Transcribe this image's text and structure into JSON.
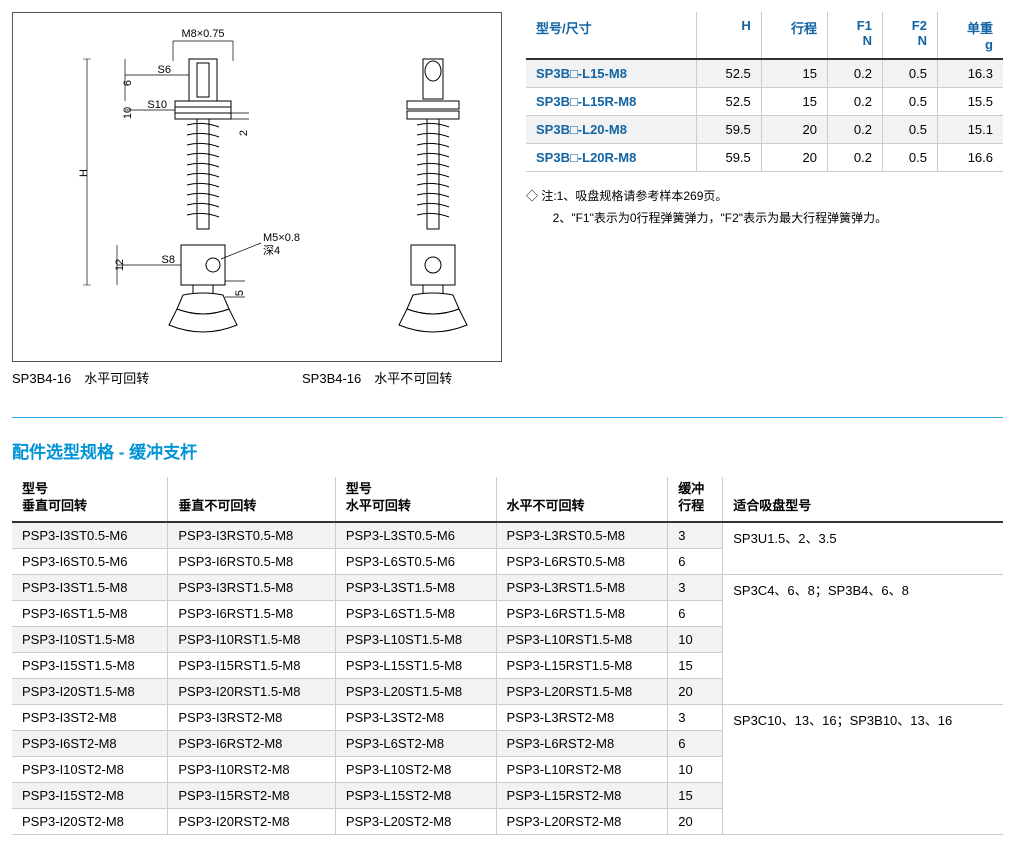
{
  "diagram": {
    "thread_top": "M8×0.75",
    "thread_side": "M5×0.8",
    "depth": "深4",
    "dim_s6": "S6",
    "dim_s10": "S10",
    "dim_s8": "S8",
    "dim_6": "6",
    "dim_10": "10",
    "dim_2": "2",
    "dim_12": "12",
    "dim_5": "5",
    "dim_H": "H",
    "caption_left": "SP3B4-16　水平可回转",
    "caption_right": "SP3B4-16　水平不可回转",
    "svg_stroke": "#000000",
    "svg_fill": "#ffffff"
  },
  "spec_table": {
    "headers": {
      "model": "型号/尺寸",
      "h": "H",
      "stroke": "行程",
      "f1_a": "F1",
      "f1_b": "N",
      "f2_a": "F2",
      "f2_b": "N",
      "wt_a": "单重",
      "wt_b": "g"
    },
    "rows": [
      {
        "model": "SP3B□-L15-M8",
        "h": "52.5",
        "stroke": "15",
        "f1": "0.2",
        "f2": "0.5",
        "wt": "16.3",
        "alt": true
      },
      {
        "model": "SP3B□-L15R-M8",
        "h": "52.5",
        "stroke": "15",
        "f1": "0.2",
        "f2": "0.5",
        "wt": "15.5",
        "alt": false
      },
      {
        "model": "SP3B□-L20-M8",
        "h": "59.5",
        "stroke": "20",
        "f1": "0.2",
        "f2": "0.5",
        "wt": "15.1",
        "alt": true
      },
      {
        "model": "SP3B□-L20R-M8",
        "h": "59.5",
        "stroke": "20",
        "f1": "0.2",
        "f2": "0.5",
        "wt": "16.6",
        "alt": false
      }
    ]
  },
  "footnote": {
    "prefix": "◇ 注:",
    "line1": "1、吸盘规格请参考样本269页。",
    "line2": "2、\"F1\"表示为0行程弹簧弹力，\"F2\"表示为最大行程弹簧弹力。"
  },
  "section_title": "配件选型规格 - 缓冲支杆",
  "parts_table": {
    "headers": {
      "c1a": "型号",
      "c1b": "垂直可回转",
      "c2": "垂直不可回转",
      "c3a": "型号",
      "c3b": "水平可回转",
      "c4": "水平不可回转",
      "c5a": "缓冲",
      "c5b": "行程",
      "c6": "适合吸盘型号"
    },
    "groups": [
      {
        "suction": "SP3U1.5、2、3.5",
        "rows": [
          {
            "c1": "PSP3-I3ST0.5-M6",
            "c2": "PSP3-I3RST0.5-M8",
            "c3": "PSP3-L3ST0.5-M6",
            "c4": "PSP3-L3RST0.5-M8",
            "c5": "3",
            "alt": true
          },
          {
            "c1": "PSP3-I6ST0.5-M6",
            "c2": "PSP3-I6RST0.5-M8",
            "c3": "PSP3-L6ST0.5-M6",
            "c4": "PSP3-L6RST0.5-M8",
            "c5": "6",
            "alt": false
          }
        ]
      },
      {
        "suction": "SP3C4、6、8；SP3B4、6、8",
        "rows": [
          {
            "c1": "PSP3-I3ST1.5-M8",
            "c2": "PSP3-I3RST1.5-M8",
            "c3": "PSP3-L3ST1.5-M8",
            "c4": "PSP3-L3RST1.5-M8",
            "c5": "3",
            "alt": true
          },
          {
            "c1": "PSP3-I6ST1.5-M8",
            "c2": "PSP3-I6RST1.5-M8",
            "c3": "PSP3-L6ST1.5-M8",
            "c4": "PSP3-L6RST1.5-M8",
            "c5": "6",
            "alt": false
          },
          {
            "c1": "PSP3-I10ST1.5-M8",
            "c2": "PSP3-I10RST1.5-M8",
            "c3": "PSP3-L10ST1.5-M8",
            "c4": "PSP3-L10RST1.5-M8",
            "c5": "10",
            "alt": true
          },
          {
            "c1": "PSP3-I15ST1.5-M8",
            "c2": "PSP3-I15RST1.5-M8",
            "c3": "PSP3-L15ST1.5-M8",
            "c4": "PSP3-L15RST1.5-M8",
            "c5": "15",
            "alt": false
          },
          {
            "c1": "PSP3-I20ST1.5-M8",
            "c2": "PSP3-I20RST1.5-M8",
            "c3": "PSP3-L20ST1.5-M8",
            "c4": "PSP3-L20RST1.5-M8",
            "c5": "20",
            "alt": true
          }
        ]
      },
      {
        "suction": "SP3C10、13、16；SP3B10、13、16",
        "rows": [
          {
            "c1": "PSP3-I3ST2-M8",
            "c2": "PSP3-I3RST2-M8",
            "c3": "PSP3-L3ST2-M8",
            "c4": "PSP3-L3RST2-M8",
            "c5": "3",
            "alt": false
          },
          {
            "c1": "PSP3-I6ST2-M8",
            "c2": "PSP3-I6RST2-M8",
            "c3": "PSP3-L6ST2-M8",
            "c4": "PSP3-L6RST2-M8",
            "c5": "6",
            "alt": true
          },
          {
            "c1": "PSP3-I10ST2-M8",
            "c2": "PSP3-I10RST2-M8",
            "c3": "PSP3-L10ST2-M8",
            "c4": "PSP3-L10RST2-M8",
            "c5": "10",
            "alt": false
          },
          {
            "c1": "PSP3-I15ST2-M8",
            "c2": "PSP3-I15RST2-M8",
            "c3": "PSP3-L15ST2-M8",
            "c4": "PSP3-L15RST2-M8",
            "c5": "15",
            "alt": true
          },
          {
            "c1": "PSP3-I20ST2-M8",
            "c2": "PSP3-I20RST2-M8",
            "c3": "PSP3-L20ST2-M8",
            "c4": "PSP3-L20RST2-M8",
            "c5": "20",
            "alt": false
          }
        ]
      }
    ]
  },
  "colors": {
    "accent": "#0093d6",
    "header_text": "#1264a3",
    "rule_dark": "#333333",
    "rule_light": "#cccccc",
    "alt_bg": "#f2f2f2"
  }
}
